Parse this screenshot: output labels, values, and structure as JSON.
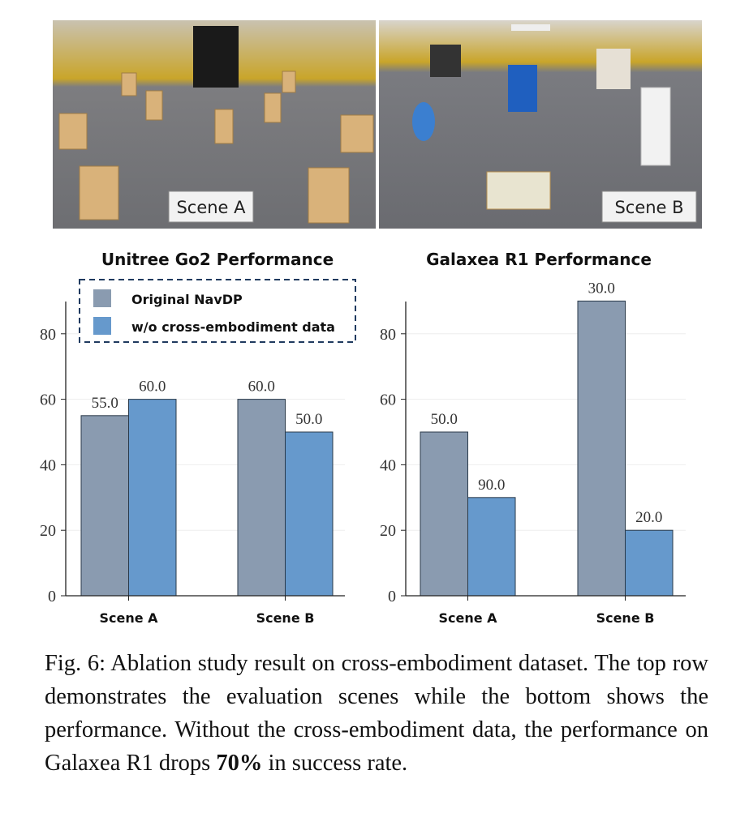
{
  "photos": [
    {
      "label": "Scene A"
    },
    {
      "label": "Scene B"
    }
  ],
  "colors": {
    "original": "#8a9bb0",
    "ablation": "#6699cc",
    "legend_border": "#1f3a5f",
    "grid": "#eeeeee"
  },
  "legend": {
    "items": [
      "Original NavDP",
      "w/o cross-embodiment data"
    ]
  },
  "chart_data": [
    {
      "type": "bar",
      "title": "Unitree Go2 Performance",
      "categories": [
        "Scene A",
        "Scene B"
      ],
      "series": [
        {
          "name": "Original NavDP",
          "values": [
            55.0,
            60.0
          ]
        },
        {
          "name": "w/o cross-embodiment data",
          "values": [
            60.0,
            50.0
          ]
        }
      ],
      "data_labels": [
        [
          "55.0",
          "60.0"
        ],
        [
          "60.0",
          "50.0"
        ]
      ],
      "yticks": [
        "0",
        "20",
        "40",
        "60",
        "80"
      ],
      "ylim": [
        0,
        90
      ],
      "xlabel": "",
      "ylabel": "",
      "grid": true,
      "legend_position": "top"
    },
    {
      "type": "bar",
      "title": "Galaxea R1 Performance",
      "categories": [
        "Scene A",
        "Scene B"
      ],
      "series": [
        {
          "name": "Original NavDP",
          "values": [
            50.0,
            90.0
          ]
        },
        {
          "name": "w/o cross-embodiment data",
          "values": [
            30.0,
            20.0
          ]
        }
      ],
      "data_labels": [
        [
          "50.0",
          "90.0"
        ],
        [
          "30.0",
          "20.0"
        ]
      ],
      "yticks": [
        "0",
        "20",
        "40",
        "60",
        "80"
      ],
      "ylim": [
        0,
        90
      ],
      "xlabel": "",
      "ylabel": "",
      "grid": true,
      "legend_position": "none"
    }
  ],
  "caption": {
    "text": "Fig. 6: Ablation study result on cross-embodiment dataset. The top row demonstrates the evaluation scenes while the bottom shows the performance. Without the cross-embodiment data, the performance on Galaxea R1 drops",
    "bold": "70%",
    "tail": " in success rate."
  }
}
